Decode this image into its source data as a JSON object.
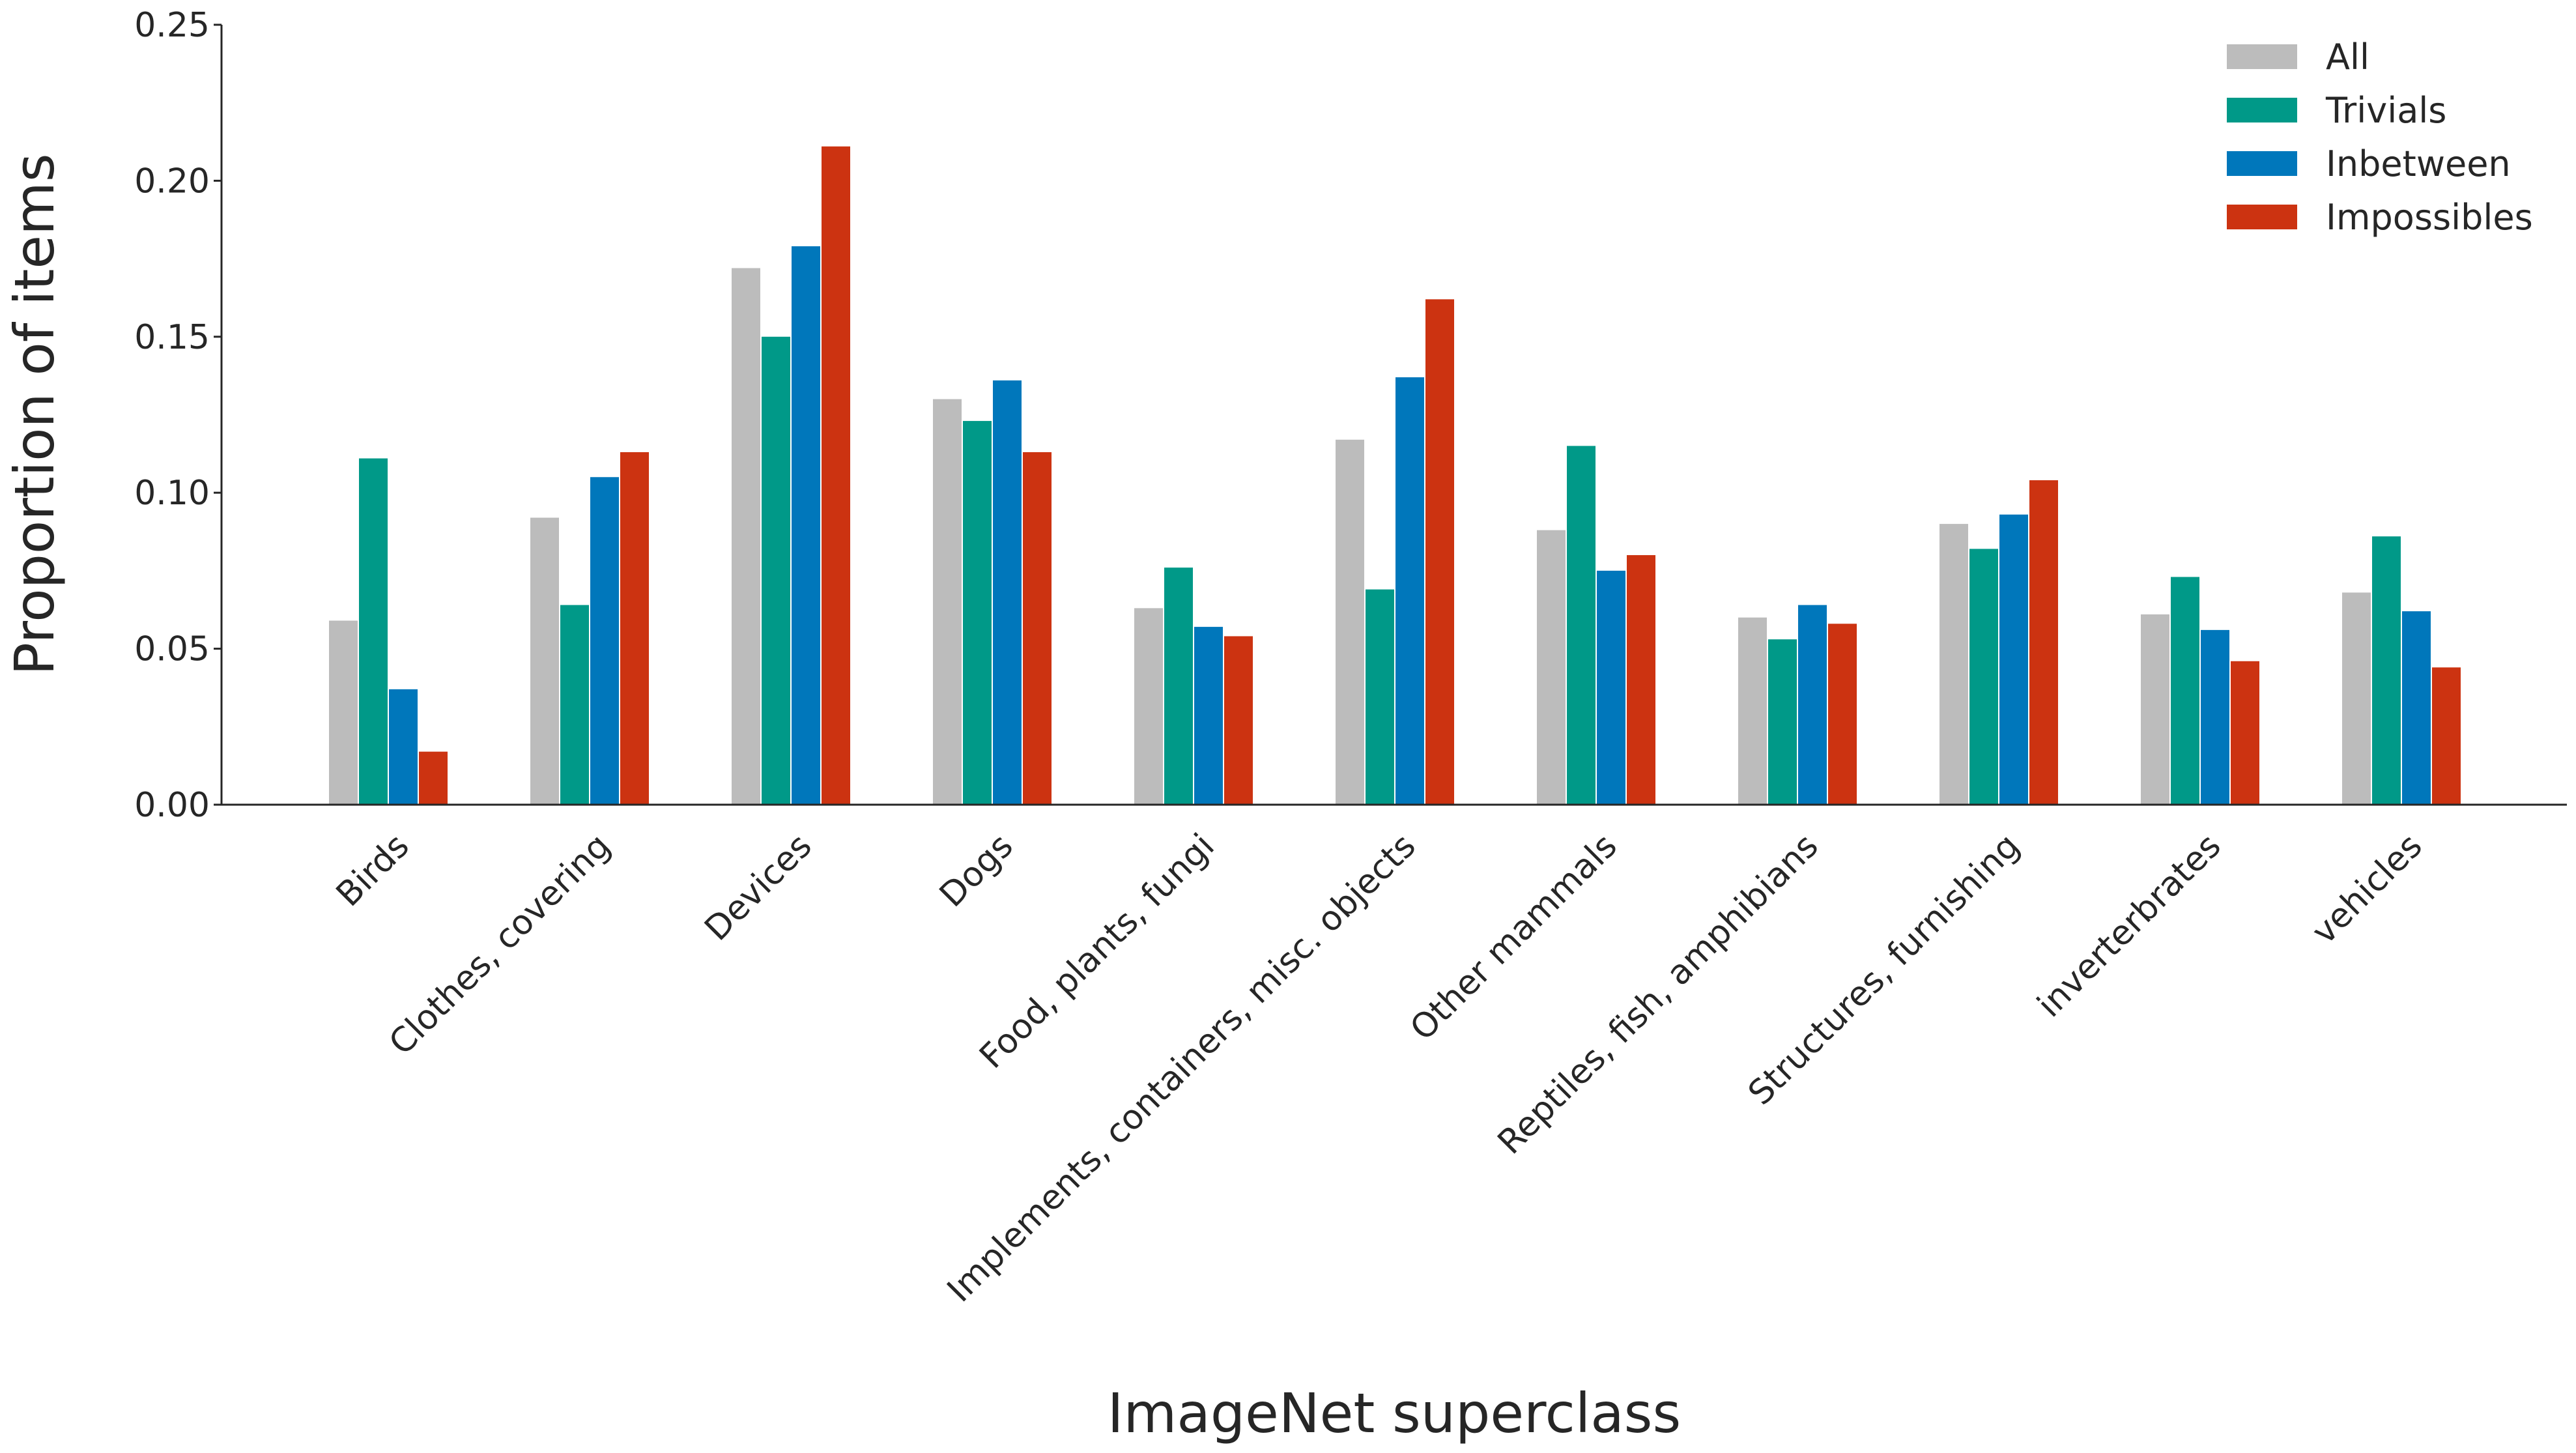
{
  "chart_data": {
    "type": "bar",
    "title": "",
    "xlabel": "ImageNet superclass",
    "ylabel": "Proportion of items",
    "ylim": [
      0,
      0.25
    ],
    "yticks": [
      "0.00",
      "0.05",
      "0.10",
      "0.15",
      "0.20",
      "0.25"
    ],
    "grid": false,
    "legend_position": "top-right",
    "categories": [
      "Birds",
      "Clothes, covering",
      "Devices",
      "Dogs",
      "Food, plants, fungi",
      "Implements, containers, misc. objects",
      "Other mammals",
      "Reptiles, fish, amphibians",
      "Structures, furnishing",
      "inverterbrates",
      "vehicles"
    ],
    "series": [
      {
        "name": "All",
        "color": "#bcbcbc",
        "values": [
          0.059,
          0.092,
          0.172,
          0.13,
          0.063,
          0.117,
          0.088,
          0.06,
          0.09,
          0.061,
          0.068
        ]
      },
      {
        "name": "Trivials",
        "color": "#009988",
        "values": [
          0.111,
          0.064,
          0.15,
          0.123,
          0.076,
          0.069,
          0.115,
          0.053,
          0.082,
          0.073,
          0.086
        ]
      },
      {
        "name": "Inbetween",
        "color": "#0077bb",
        "values": [
          0.037,
          0.105,
          0.179,
          0.136,
          0.057,
          0.137,
          0.075,
          0.064,
          0.093,
          0.056,
          0.062
        ]
      },
      {
        "name": "Impossibles",
        "color": "#cc3311",
        "values": [
          0.017,
          0.113,
          0.211,
          0.113,
          0.054,
          0.162,
          0.08,
          0.058,
          0.104,
          0.046,
          0.044
        ]
      }
    ]
  }
}
